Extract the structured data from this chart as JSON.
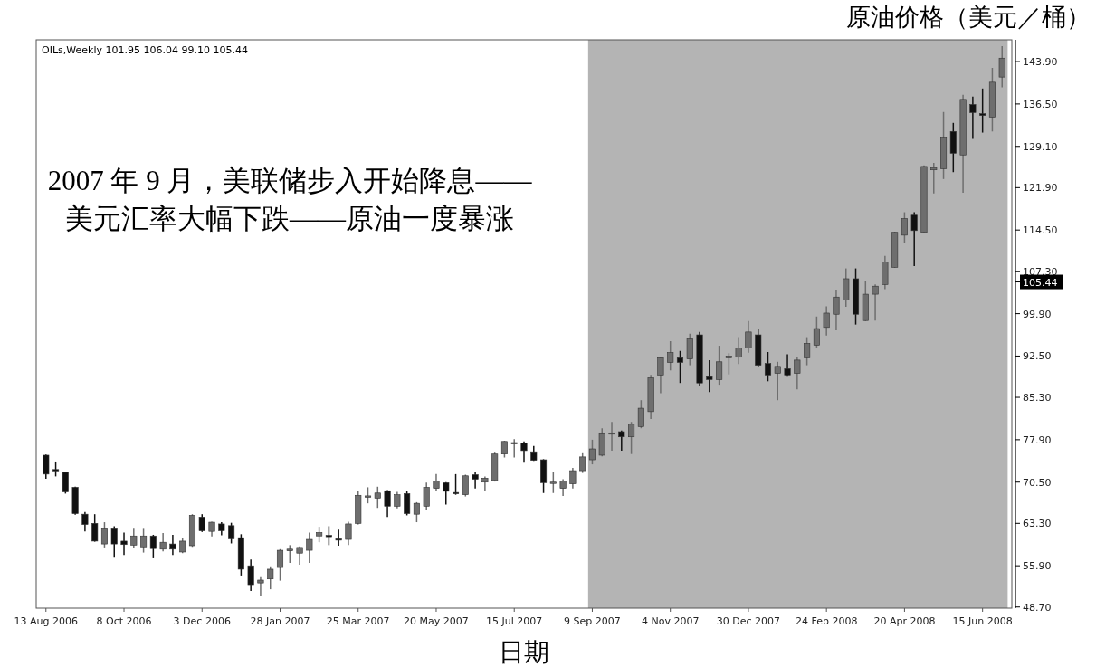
{
  "chart_data": {
    "type": "candlestick",
    "xlabel": "日期",
    "ylabel": "原油价格（美元／桶）",
    "annotations": [
      "OILs,Weekly  101.95 106.04 99.10 105.44",
      "2007 年 9 月，美联储步入开始降息——\n美元汇率大幅下跌——原油一度暴涨",
      "105.44"
    ],
    "x": [
      "2006-08-13",
      "2006-08-20",
      "2006-08-27",
      "2006-09-03",
      "2006-09-10",
      "2006-09-17",
      "2006-09-24",
      "2006-10-01",
      "2006-10-08",
      "2006-10-15",
      "2006-10-22",
      "2006-10-29",
      "2006-11-05",
      "2006-11-12",
      "2006-11-19",
      "2006-11-26",
      "2006-12-03",
      "2006-12-10",
      "2006-12-17",
      "2006-12-24",
      "2006-12-31",
      "2007-01-07",
      "2007-01-14",
      "2007-01-21",
      "2007-01-28",
      "2007-02-04",
      "2007-02-11",
      "2007-02-18",
      "2007-02-25",
      "2007-03-04",
      "2007-03-11",
      "2007-03-18",
      "2007-03-25",
      "2007-04-01",
      "2007-04-08",
      "2007-04-15",
      "2007-04-22",
      "2007-04-29",
      "2007-05-06",
      "2007-05-13",
      "2007-05-20",
      "2007-05-27",
      "2007-06-03",
      "2007-06-10",
      "2007-06-17",
      "2007-06-24",
      "2007-07-01",
      "2007-07-08",
      "2007-07-15",
      "2007-07-22",
      "2007-07-29",
      "2007-08-05",
      "2007-08-12",
      "2007-08-19",
      "2007-08-26",
      "2007-09-02",
      "2007-09-09",
      "2007-09-16",
      "2007-09-23",
      "2007-09-30",
      "2007-10-07",
      "2007-10-14",
      "2007-10-21",
      "2007-10-28",
      "2007-11-04",
      "2007-11-11",
      "2007-11-18",
      "2007-11-25",
      "2007-12-02",
      "2007-12-09",
      "2007-12-16",
      "2007-12-23",
      "2007-12-30",
      "2008-01-06",
      "2008-01-13",
      "2008-01-20",
      "2008-01-27",
      "2008-02-03",
      "2008-02-10",
      "2008-02-17",
      "2008-02-24",
      "2008-03-02",
      "2008-03-09",
      "2008-03-16",
      "2008-03-23",
      "2008-03-30",
      "2008-04-06",
      "2008-04-13",
      "2008-04-20",
      "2008-04-27",
      "2008-05-04",
      "2008-05-11",
      "2008-05-18",
      "2008-05-25",
      "2008-06-01",
      "2008-06-08",
      "2008-06-15",
      "2008-06-22",
      "2008-06-29"
    ],
    "ohlc": [
      [
        75.2,
        75.3,
        71.1,
        71.9
      ],
      [
        72.7,
        74.1,
        71.5,
        72.5
      ],
      [
        72.2,
        72.3,
        68.5,
        68.8
      ],
      [
        69.6,
        69.7,
        64.8,
        65.0
      ],
      [
        64.9,
        65.3,
        61.9,
        63.1
      ],
      [
        63.3,
        64.9,
        60.1,
        60.2
      ],
      [
        59.7,
        63.5,
        59.1,
        62.5
      ],
      [
        62.5,
        62.8,
        57.3,
        59.7
      ],
      [
        60.2,
        61.7,
        57.8,
        59.6
      ],
      [
        59.5,
        62.5,
        59.1,
        61.1
      ],
      [
        59.2,
        62.5,
        58.2,
        61.1
      ],
      [
        61.1,
        61.3,
        57.2,
        58.9
      ],
      [
        58.8,
        61.6,
        58.4,
        60.0
      ],
      [
        59.7,
        61.3,
        57.8,
        58.8
      ],
      [
        58.3,
        60.8,
        58.1,
        60.2
      ],
      [
        59.4,
        64.9,
        59.2,
        64.7
      ],
      [
        64.4,
        64.9,
        61.8,
        62.0
      ],
      [
        61.9,
        63.6,
        61.0,
        63.5
      ],
      [
        63.2,
        63.5,
        61.2,
        62.0
      ],
      [
        62.9,
        63.4,
        59.8,
        60.6
      ],
      [
        60.8,
        61.4,
        54.2,
        55.3
      ],
      [
        55.9,
        57.0,
        51.5,
        52.6
      ],
      [
        52.9,
        53.9,
        50.6,
        53.4
      ],
      [
        53.6,
        55.8,
        51.8,
        55.3
      ],
      [
        55.6,
        58.8,
        53.3,
        58.6
      ],
      [
        58.5,
        59.5,
        56.4,
        58.8
      ],
      [
        58.1,
        59.3,
        56.1,
        59.1
      ],
      [
        58.6,
        61.7,
        56.4,
        60.5
      ],
      [
        61.1,
        62.7,
        60.0,
        61.7
      ],
      [
        61.2,
        62.8,
        59.5,
        61.0
      ],
      [
        60.6,
        62.2,
        59.4,
        60.4
      ],
      [
        60.5,
        63.6,
        59.5,
        63.2
      ],
      [
        63.3,
        68.9,
        63.1,
        68.2
      ],
      [
        67.9,
        69.6,
        66.8,
        68.1
      ],
      [
        67.7,
        69.7,
        66.0,
        68.6
      ],
      [
        69.0,
        69.1,
        64.4,
        66.3
      ],
      [
        66.3,
        68.8,
        65.9,
        68.3
      ],
      [
        68.5,
        68.9,
        64.7,
        65.0
      ],
      [
        64.9,
        67.0,
        63.5,
        66.8
      ],
      [
        66.3,
        70.4,
        65.7,
        69.6
      ],
      [
        69.4,
        71.9,
        68.9,
        70.7
      ],
      [
        70.4,
        70.5,
        66.6,
        68.9
      ],
      [
        68.7,
        71.9,
        68.3,
        68.5
      ],
      [
        68.3,
        71.8,
        68.0,
        71.6
      ],
      [
        71.8,
        72.3,
        69.4,
        71.0
      ],
      [
        70.5,
        71.5,
        68.9,
        71.2
      ],
      [
        70.8,
        75.8,
        70.6,
        75.4
      ],
      [
        75.4,
        77.7,
        74.8,
        77.6
      ],
      [
        77.2,
        78.0,
        74.8,
        77.4
      ],
      [
        77.3,
        77.6,
        73.9,
        76.0
      ],
      [
        75.8,
        76.8,
        74.2,
        74.3
      ],
      [
        74.4,
        74.5,
        68.6,
        70.4
      ],
      [
        70.3,
        72.2,
        68.6,
        70.5
      ],
      [
        69.4,
        71.0,
        68.1,
        70.7
      ],
      [
        70.2,
        73.0,
        69.4,
        72.5
      ],
      [
        72.5,
        75.7,
        72.1,
        74.9
      ],
      [
        74.4,
        77.9,
        73.6,
        76.3
      ],
      [
        75.2,
        79.9,
        75.0,
        79.1
      ],
      [
        78.9,
        81.0,
        76.0,
        79.1
      ],
      [
        79.3,
        79.5,
        76.0,
        78.4
      ],
      [
        78.4,
        81.0,
        75.4,
        80.6
      ],
      [
        80.2,
        84.8,
        79.9,
        83.4
      ],
      [
        82.8,
        89.2,
        81.5,
        88.7
      ],
      [
        89.2,
        92.3,
        86.0,
        92.2
      ],
      [
        91.4,
        95.1,
        90.0,
        93.1
      ],
      [
        92.2,
        93.4,
        87.8,
        91.4
      ],
      [
        92.0,
        96.4,
        90.9,
        95.5
      ],
      [
        96.2,
        96.7,
        87.3,
        87.8
      ],
      [
        88.9,
        91.8,
        86.2,
        88.4
      ],
      [
        88.4,
        94.3,
        87.5,
        91.5
      ],
      [
        92.2,
        93.0,
        89.3,
        92.5
      ],
      [
        92.3,
        95.8,
        91.1,
        93.9
      ],
      [
        93.9,
        98.6,
        93.1,
        96.7
      ],
      [
        96.2,
        97.3,
        90.6,
        90.9
      ],
      [
        91.2,
        93.2,
        88.1,
        89.2
      ],
      [
        89.5,
        91.5,
        84.8,
        90.7
      ],
      [
        90.3,
        92.8,
        88.9,
        89.2
      ],
      [
        89.5,
        92.3,
        86.7,
        91.8
      ],
      [
        92.2,
        95.8,
        90.9,
        94.7
      ],
      [
        94.4,
        99.4,
        94.0,
        97.3
      ],
      [
        97.5,
        101.2,
        96.1,
        100.0
      ],
      [
        99.8,
        104.1,
        97.0,
        102.8
      ],
      [
        102.3,
        107.8,
        101.1,
        106.0
      ],
      [
        106.0,
        107.8,
        98.0,
        99.8
      ],
      [
        98.7,
        105.6,
        98.6,
        103.3
      ],
      [
        103.3,
        105.0,
        98.7,
        104.7
      ],
      [
        105.0,
        110.0,
        104.2,
        108.9
      ],
      [
        108.0,
        114.2,
        107.9,
        114.1
      ],
      [
        113.6,
        117.6,
        112.2,
        116.5
      ],
      [
        117.1,
        117.6,
        108.2,
        114.4
      ],
      [
        114.1,
        125.8,
        114.0,
        125.6
      ],
      [
        125.0,
        126.2,
        120.9,
        125.4
      ],
      [
        125.2,
        135.1,
        123.4,
        130.7
      ],
      [
        131.7,
        133.2,
        124.6,
        127.9
      ],
      [
        127.6,
        138.1,
        121.0,
        137.3
      ],
      [
        136.4,
        137.8,
        130.4,
        135.0
      ],
      [
        134.8,
        139.2,
        131.5,
        134.5
      ],
      [
        134.2,
        142.8,
        131.7,
        140.3
      ],
      [
        141.2,
        146.6,
        139.4,
        144.5
      ]
    ],
    "colors": [
      "#111111",
      "#111111",
      "#111111",
      "#111111",
      "#111111",
      "#111111",
      "#6e6e6e",
      "#111111",
      "#111111",
      "#6e6e6e",
      "#6e6e6e",
      "#111111",
      "#6e6e6e",
      "#111111",
      "#6e6e6e",
      "#6e6e6e",
      "#111111",
      "#6e6e6e",
      "#111111",
      "#111111",
      "#111111",
      "#111111",
      "#6e6e6e",
      "#6e6e6e",
      "#6e6e6e",
      "#6e6e6e",
      "#6e6e6e",
      "#6e6e6e",
      "#6e6e6e",
      "#111111",
      "#111111",
      "#6e6e6e",
      "#6e6e6e",
      "#6e6e6e",
      "#6e6e6e",
      "#111111",
      "#6e6e6e",
      "#111111",
      "#6e6e6e",
      "#6e6e6e",
      "#6e6e6e",
      "#111111",
      "#111111",
      "#6e6e6e",
      "#111111",
      "#6e6e6e",
      "#6e6e6e",
      "#6e6e6e",
      "#6e6e6e",
      "#111111",
      "#111111",
      "#111111",
      "#6e6e6e",
      "#6e6e6e",
      "#6e6e6e",
      "#6e6e6e",
      "#6e6e6e",
      "#6e6e6e",
      "#6e6e6e",
      "#111111",
      "#6e6e6e",
      "#6e6e6e",
      "#6e6e6e",
      "#6e6e6e",
      "#6e6e6e",
      "#111111",
      "#6e6e6e",
      "#111111",
      "#111111",
      "#6e6e6e",
      "#6e6e6e",
      "#6e6e6e",
      "#6e6e6e",
      "#111111",
      "#111111",
      "#6e6e6e",
      "#111111",
      "#6e6e6e",
      "#6e6e6e",
      "#6e6e6e",
      "#6e6e6e",
      "#6e6e6e",
      "#6e6e6e",
      "#111111",
      "#6e6e6e",
      "#6e6e6e",
      "#6e6e6e",
      "#6e6e6e",
      "#6e6e6e",
      "#111111",
      "#6e6e6e",
      "#6e6e6e",
      "#6e6e6e",
      "#111111",
      "#6e6e6e",
      "#111111",
      "#111111",
      "#6e6e6e",
      "#6e6e6e"
    ],
    "xlim": [
      "2006-08-06",
      "2008-07-06"
    ],
    "ylim": [
      48.5,
      147.7
    ],
    "xticks": [
      {
        "value": "2006-08-13",
        "label": "13 Aug 2006"
      },
      {
        "value": "2006-10-08",
        "label": "8 Oct 2006"
      },
      {
        "value": "2006-12-03",
        "label": "3 Dec 2006"
      },
      {
        "value": "2007-01-28",
        "label": "28 Jan 2007"
      },
      {
        "value": "2007-03-25",
        "label": "25 Mar 2007"
      },
      {
        "value": "2007-05-20",
        "label": "20 May 2007"
      },
      {
        "value": "2007-07-15",
        "label": "15 Jul 2007"
      },
      {
        "value": "2007-09-09",
        "label": "9 Sep 2007"
      },
      {
        "value": "2007-11-04",
        "label": "4 Nov 2007"
      },
      {
        "value": "2007-12-30",
        "label": "30 Dec 2007"
      },
      {
        "value": "2008-02-24",
        "label": "24 Feb 2008"
      },
      {
        "value": "2008-04-20",
        "label": "20 Apr 2008"
      },
      {
        "value": "2008-06-15",
        "label": "15 Jun 2008"
      }
    ],
    "yticks": [
      {
        "value": 48.7,
        "label": "48.70"
      },
      {
        "value": 55.9,
        "label": "55.90"
      },
      {
        "value": 63.3,
        "label": "63.30"
      },
      {
        "value": 70.5,
        "label": "70.50"
      },
      {
        "value": 77.9,
        "label": "77.90"
      },
      {
        "value": 85.3,
        "label": "85.30"
      },
      {
        "value": 92.5,
        "label": "92.50"
      },
      {
        "value": 99.9,
        "label": "99.90"
      },
      {
        "value": 107.3,
        "label": "107.30"
      },
      {
        "value": 114.5,
        "label": "114.50"
      },
      {
        "value": 121.9,
        "label": "121.90"
      },
      {
        "value": 129.1,
        "label": "129.10"
      },
      {
        "value": 136.5,
        "label": "136.50"
      },
      {
        "value": 143.9,
        "label": "143.90"
      }
    ],
    "bands": [
      {
        "axis": "x",
        "from": "2007-09-06",
        "to": "2008-07-03",
        "color": "#b4b4b4"
      }
    ]
  }
}
